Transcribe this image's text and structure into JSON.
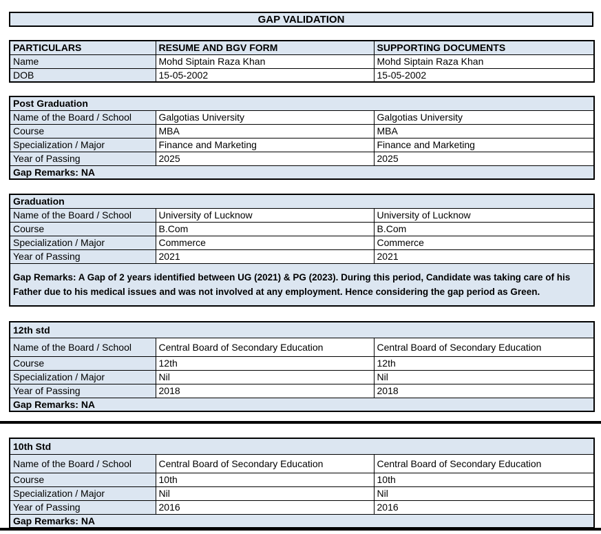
{
  "title": "GAP VALIDATION",
  "colors": {
    "header_bg": "#dce6f1",
    "border": "#000000",
    "cell_bg": "#ffffff"
  },
  "particulars_table": {
    "headers": [
      "PARTICULARS",
      "RESUME AND BGV FORM",
      "SUPPORTING DOCUMENTS"
    ],
    "rows": [
      {
        "label": "Name",
        "resume": "Mohd Siptain Raza Khan",
        "supporting": "Mohd Siptain Raza Khan"
      },
      {
        "label": "DOB",
        "resume": "15-05-2002",
        "supporting": "15-05-2002"
      }
    ]
  },
  "sections": [
    {
      "title": "Post Graduation",
      "rows": [
        {
          "label": "Name of the Board / School",
          "resume": "Galgotias University",
          "supporting": "Galgotias University"
        },
        {
          "label": "Course",
          "resume": "MBA",
          "supporting": "MBA"
        },
        {
          "label": "Specialization / Major",
          "resume": "Finance and Marketing",
          "supporting": "Finance and Marketing"
        },
        {
          "label": "Year of Passing",
          "resume": "2025",
          "supporting": "2025"
        }
      ],
      "gap_remarks": "Gap Remarks: NA"
    },
    {
      "title": "Graduation",
      "rows": [
        {
          "label": "Name of the Board / School",
          "resume": "University of Lucknow",
          "supporting": "University of Lucknow"
        },
        {
          "label": "Course",
          "resume": "B.Com",
          "supporting": "B.Com"
        },
        {
          "label": "Specialization / Major",
          "resume": "Commerce",
          "supporting": "Commerce"
        },
        {
          "label": "Year of Passing",
          "resume": "2021",
          "supporting": "2021"
        }
      ],
      "gap_remarks": "Gap Remarks: A Gap of 2 years identified between UG (2021) & PG (2023). During this period, Candidate was taking care of his Father due to his medical issues and was not involved at any employment. Hence considering the gap period as Green."
    },
    {
      "title": "12th std",
      "rows": [
        {
          "label": "Name of the Board / School",
          "resume": "Central Board of Secondary Education",
          "supporting": "Central Board of Secondary Education"
        },
        {
          "label": "Course",
          "resume": "12th",
          "supporting": "12th"
        },
        {
          "label": "Specialization / Major",
          "resume": "Nil",
          "supporting": "Nil"
        },
        {
          "label": "Year of Passing",
          "resume": "2018",
          "supporting": "2018"
        }
      ],
      "gap_remarks": "Gap Remarks: NA"
    },
    {
      "title": "10th Std",
      "rows": [
        {
          "label": "Name of the Board / School",
          "resume": "Central Board of Secondary Education",
          "supporting": "Central Board of Secondary Education"
        },
        {
          "label": "Course",
          "resume": "10th",
          "supporting": "10th"
        },
        {
          "label": "Specialization / Major",
          "resume": "Nil",
          "supporting": "Nil"
        },
        {
          "label": "Year of Passing",
          "resume": "2016",
          "supporting": "2016"
        }
      ],
      "gap_remarks": "Gap Remarks: NA"
    }
  ]
}
